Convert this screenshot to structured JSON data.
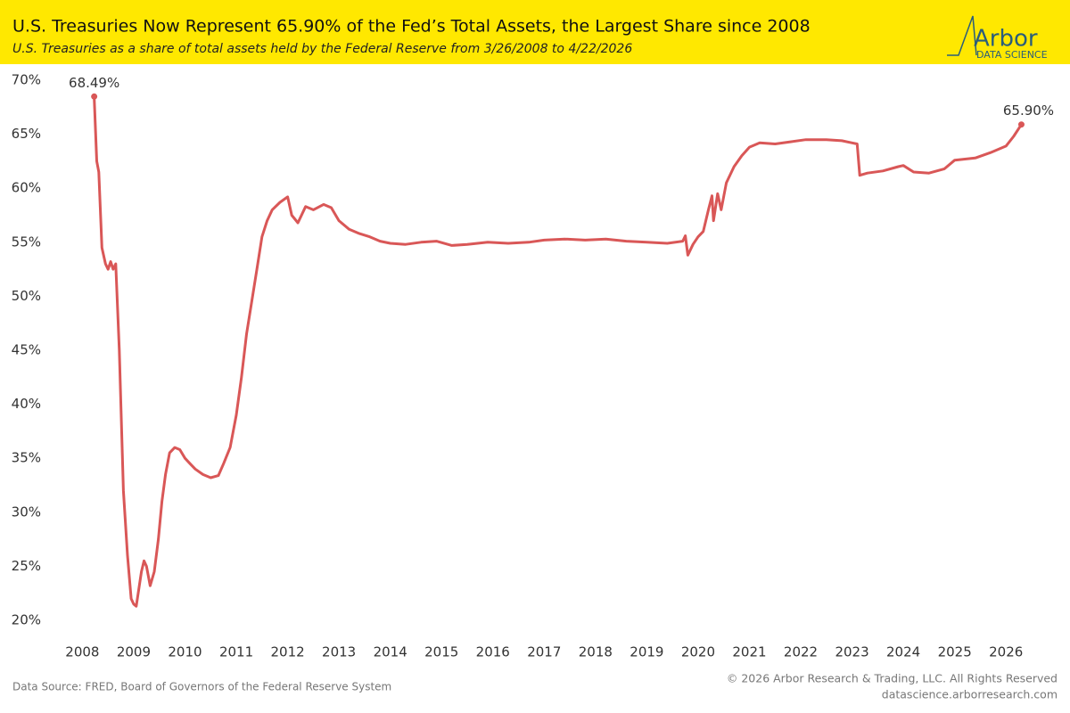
{
  "chart_data": {
    "type": "line",
    "title": "U.S. Treasuries Now Represent 65.90% of the Fed’s Total Assets, the Largest Share since 2008",
    "subtitle": "U.S. Treasuries as a share of total assets held by the Federal Reserve from 3/26/2008 to 4/22/2026",
    "logo": {
      "name": "Arbor",
      "tagline": "DATA SCIENCE"
    },
    "source": "Data Source: FRED, Board of Governors of the Federal Reserve System",
    "copyright": "© 2026 Arbor Research & Trading, LLC. All Rights Reserved",
    "website": "datascience.arborresearch.com",
    "xlim": [
      2007.35,
      2026.9
    ],
    "xticks": [
      2008,
      2009,
      2010,
      2011,
      2012,
      2013,
      2014,
      2015,
      2016,
      2017,
      2018,
      2019,
      2020,
      2021,
      2022,
      2023,
      2024,
      2025,
      2026
    ],
    "ylim": [
      20,
      70
    ],
    "yticks": [
      {
        "value": 20,
        "label": "20%"
      },
      {
        "value": 25,
        "label": "25%"
      },
      {
        "value": 30,
        "label": "30%"
      },
      {
        "value": 35,
        "label": "35%"
      },
      {
        "value": 40,
        "label": "40%"
      },
      {
        "value": 45,
        "label": "45%"
      },
      {
        "value": 50,
        "label": "50%"
      },
      {
        "value": 55,
        "label": "55%"
      },
      {
        "value": 60,
        "label": "60%"
      },
      {
        "value": 65,
        "label": "65%"
      },
      {
        "value": 70,
        "label": "70%"
      }
    ],
    "grid": false,
    "series": [
      {
        "color": "#d95757",
        "x": [
          2008.23,
          2008.28,
          2008.32,
          2008.38,
          2008.45,
          2008.5,
          2008.55,
          2008.6,
          2008.65,
          2008.72,
          2008.8,
          2008.88,
          2008.95,
          2009.0,
          2009.05,
          2009.15,
          2009.2,
          2009.25,
          2009.32,
          2009.4,
          2009.48,
          2009.55,
          2009.62,
          2009.7,
          2009.8,
          2009.9,
          2010.0,
          2010.1,
          2010.2,
          2010.35,
          2010.5,
          2010.65,
          2010.75,
          2010.88,
          2011.0,
          2011.1,
          2011.2,
          2011.3,
          2011.4,
          2011.5,
          2011.6,
          2011.7,
          2011.85,
          2012.0,
          2012.08,
          2012.2,
          2012.35,
          2012.5,
          2012.7,
          2012.85,
          2013.0,
          2013.2,
          2013.4,
          2013.6,
          2013.8,
          2014.0,
          2014.3,
          2014.6,
          2014.9,
          2015.2,
          2015.5,
          2015.9,
          2016.3,
          2016.7,
          2017.0,
          2017.4,
          2017.8,
          2018.2,
          2018.6,
          2019.0,
          2019.4,
          2019.7,
          2019.75,
          2019.8,
          2019.9,
          2020.0,
          2020.1,
          2020.2,
          2020.27,
          2020.3,
          2020.38,
          2020.45,
          2020.55,
          2020.7,
          2020.85,
          2021.0,
          2021.2,
          2021.5,
          2021.8,
          2022.1,
          2022.5,
          2022.8,
          2023.0,
          2023.1,
          2023.15,
          2023.3,
          2023.6,
          2023.9,
          2024.0,
          2024.2,
          2024.5,
          2024.8,
          2025.0,
          2025.4,
          2025.7,
          2026.0,
          2026.15,
          2026.3
        ],
        "values": [
          68.49,
          62.5,
          61.5,
          54.5,
          53.0,
          52.5,
          53.2,
          52.5,
          53.0,
          45,
          32,
          26,
          22,
          21.5,
          21.3,
          24.5,
          25.5,
          25.0,
          23.2,
          24.5,
          27.5,
          31,
          33.5,
          35.5,
          36.0,
          35.8,
          35.0,
          34.5,
          34.0,
          33.5,
          33.2,
          33.4,
          34.5,
          36.0,
          39.0,
          42.5,
          46.5,
          49.5,
          52.5,
          55.5,
          57.0,
          58.0,
          58.7,
          59.2,
          57.5,
          56.8,
          58.3,
          58.0,
          58.5,
          58.2,
          57.0,
          56.2,
          55.8,
          55.5,
          55.1,
          54.9,
          54.8,
          55.0,
          55.1,
          54.7,
          54.8,
          55.0,
          54.9,
          55.0,
          55.2,
          55.3,
          55.2,
          55.3,
          55.1,
          55.0,
          54.9,
          55.1,
          55.6,
          53.8,
          54.8,
          55.5,
          56.0,
          58.0,
          59.3,
          57.0,
          59.5,
          58.0,
          60.5,
          62.0,
          63.0,
          63.8,
          64.2,
          64.1,
          64.3,
          64.5,
          64.5,
          64.4,
          64.2,
          64.1,
          61.2,
          61.4,
          61.6,
          62.0,
          62.1,
          61.5,
          61.4,
          61.8,
          62.6,
          62.8,
          63.3,
          63.9,
          64.8,
          65.9
        ],
        "value_labels": [
          "68.49%",
          null,
          null,
          null,
          null,
          null,
          null,
          null,
          null,
          null,
          null,
          null,
          null,
          null,
          null,
          null,
          null,
          null,
          null,
          null,
          null,
          null,
          null,
          null,
          null,
          null,
          null,
          null,
          null,
          null,
          null,
          null,
          null,
          null,
          null,
          null,
          null,
          null,
          null,
          null,
          null,
          null,
          null,
          null,
          null,
          null,
          null,
          null,
          null,
          null,
          null,
          null,
          null,
          null,
          null,
          null,
          null,
          null,
          null,
          null,
          null,
          null,
          null,
          null,
          null,
          null,
          null,
          null,
          null,
          null,
          null,
          null,
          null,
          null,
          null,
          null,
          null,
          null,
          null,
          null,
          null,
          null,
          null,
          null,
          null,
          null,
          null,
          null,
          null,
          null,
          null,
          null,
          null,
          null,
          null,
          null,
          null,
          null,
          null,
          null,
          null,
          null,
          null,
          null,
          null,
          null,
          null,
          "65.90%"
        ]
      }
    ]
  }
}
